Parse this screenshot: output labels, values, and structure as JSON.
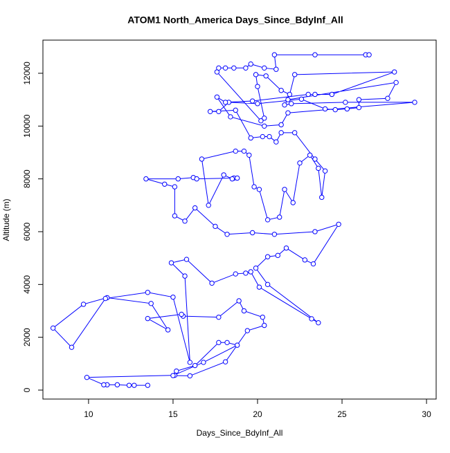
{
  "chart_data": {
    "type": "line",
    "title": "ATOM1 North_America Days_Since_BdyInf_All",
    "xlabel": "Days_Since_BdyInf_All",
    "ylabel": "Altitude (m)",
    "color": "#0000ff",
    "markers": "open-circle",
    "grid": false,
    "xlim": [
      7.3,
      30.57
    ],
    "ylim": [
      -340,
      13256
    ],
    "xticks": [
      10,
      15,
      20,
      25,
      30
    ],
    "yticks": [
      0,
      2000,
      4000,
      6000,
      8000,
      10000,
      12000
    ],
    "x": [
      13.5,
      12.7,
      12.4,
      11.7,
      11.1,
      10.9,
      9.9,
      15.1,
      15.2,
      16.3,
      17.7,
      18.2,
      18.8,
      16.8,
      15.0,
      16.0,
      18.1,
      19.4,
      20.4,
      20.3,
      19.2,
      18.9,
      17.7,
      15.6,
      15.5,
      13.5,
      14.7,
      13.7,
      11.1,
      9.7,
      7.9,
      9.0,
      11.0,
      13.5,
      15.0,
      16.0,
      15.7,
      14.9,
      15.8,
      17.3,
      18.7,
      19.3,
      19.6,
      20.1,
      23.2,
      23.6,
      20.6,
      19.9,
      20.6,
      21.2,
      21.7,
      22.8,
      23.3,
      24.8,
      23.4,
      21.0,
      19.7,
      18.2,
      17.5,
      16.3,
      15.7,
      15.1,
      15.1,
      14.5,
      13.4,
      15.3,
      16.2,
      16.4,
      18.6,
      18.8,
      18.5,
      18.0,
      17.1,
      16.7,
      18.7,
      19.2,
      19.5,
      19.8,
      20.1,
      20.6,
      21.3,
      21.6,
      22.1,
      22.5,
      23.1,
      23.6,
      23.8,
      24.0,
      23.4,
      22.2,
      21.4,
      21.1,
      20.7,
      20.3,
      19.6,
      18.7,
      17.2,
      17.7,
      18.3,
      20.0,
      22.6,
      24.0,
      24.6,
      25.3,
      26.0,
      26.0,
      27.7,
      28.2,
      21.8,
      21.6,
      22.0,
      25.2,
      29.3,
      21.8,
      21.4,
      20.4,
      18.4,
      17.6,
      18.1,
      19.7,
      23.0,
      23.4,
      24.4,
      28.1,
      22.2,
      21.9,
      21.4,
      20.5,
      19.9,
      20.0,
      20.4,
      20.2,
      17.6,
      17.7,
      18.1,
      18.6,
      19.3,
      19.6,
      20.4,
      21.1,
      21.0,
      23.4,
      26.4,
      26.6
    ],
    "values": [
      180,
      180,
      180,
      200,
      200,
      200,
      480,
      560,
      720,
      930,
      1800,
      1800,
      1700,
      1050,
      550,
      540,
      1070,
      2250,
      2450,
      2760,
      3000,
      3380,
      2760,
      2800,
      2870,
      2710,
      2280,
      3280,
      3500,
      3250,
      2350,
      1620,
      3470,
      3700,
      3520,
      1050,
      4320,
      4820,
      4950,
      4050,
      4400,
      4430,
      4480,
      3900,
      2700,
      2550,
      4000,
      4620,
      5050,
      5100,
      5380,
      4930,
      4780,
      6280,
      6000,
      5900,
      5960,
      5900,
      6200,
      6900,
      6400,
      6600,
      7700,
      7800,
      8000,
      8000,
      8050,
      8000,
      8030,
      8030,
      8000,
      8150,
      7000,
      8750,
      9050,
      9050,
      8900,
      7700,
      7600,
      6450,
      6550,
      7600,
      7100,
      8600,
      8900,
      8400,
      7300,
      8300,
      8750,
      9750,
      9750,
      9400,
      9600,
      9600,
      9550,
      10600,
      10550,
      10550,
      10900,
      10850,
      11020,
      10650,
      10620,
      10650,
      10700,
      11000,
      11050,
      11650,
      11000,
      10800,
      10850,
      10900,
      10900,
      10500,
      10050,
      10000,
      10350,
      11100,
      10900,
      10950,
      11200,
      11200,
      11200,
      12050,
      11950,
      11200,
      11350,
      11900,
      11950,
      11500,
      10300,
      10200,
      12050,
      12200,
      12200,
      12200,
      12200,
      12350,
      12200,
      12150,
      12700,
      12700,
      12700,
      12700
    ]
  }
}
